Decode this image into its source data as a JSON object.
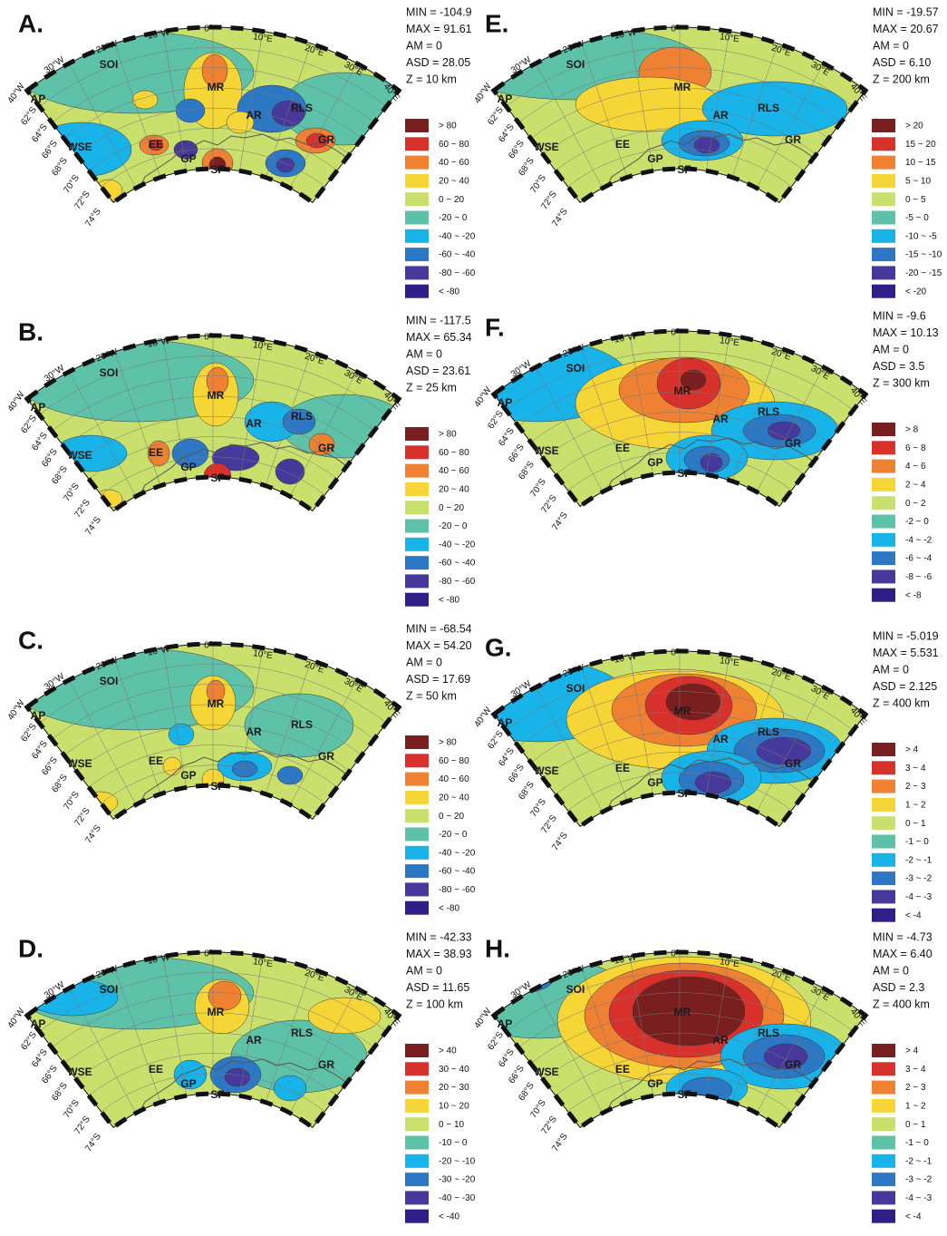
{
  "legend_colors": [
    "#7a1f1f",
    "#d8312b",
    "#ee8132",
    "#f6d536",
    "#c9e06c",
    "#5ec2a9",
    "#17b3e9",
    "#2c78c4",
    "#47399c",
    "#2e1e86"
  ],
  "regions": [
    "SOI",
    "AP",
    "WSE",
    "EE",
    "GP",
    "SF",
    "MR",
    "AR",
    "RLS",
    "GR"
  ],
  "longitudes": [
    "40°W",
    "30°W",
    "20°W",
    "10°W",
    "0°",
    "10°E",
    "20°E",
    "30°E",
    "40°E"
  ],
  "latitudes": [
    "62°S",
    "64°S",
    "66°S",
    "68°S",
    "70°S",
    "72°S",
    "74°S"
  ],
  "panels": [
    {
      "letter": "A.",
      "stats": [
        "MIN = -104.9",
        "MAX = 91.61",
        "AM = 0",
        "ASD = 28.05",
        "Z = 10 km"
      ],
      "legend": [
        "> 80",
        "60 ~ 80",
        "40 ~ 60",
        "20 ~ 40",
        "0 ~ 20",
        "-20 ~ 0",
        "-40 ~ -20",
        "-60 ~ -40",
        "-80 ~ -60",
        "< -80"
      ]
    },
    {
      "letter": "B.",
      "stats": [
        "MIN = -117.5",
        "MAX = 65.34",
        "AM = 0",
        "ASD = 23.61",
        "Z = 25 km"
      ],
      "legend": [
        "> 80",
        "60 ~ 80",
        "40 ~ 60",
        "20 ~ 40",
        "0 ~ 20",
        "-20 ~ 0",
        "-40 ~ -20",
        "-60 ~ -40",
        "-80 ~ -60",
        "< -80"
      ]
    },
    {
      "letter": "C.",
      "stats": [
        "MIN = -68.54",
        "MAX = 54.20",
        "AM = 0",
        "ASD = 17.69",
        "Z = 50 km"
      ],
      "legend": [
        "> 80",
        "60 ~ 80",
        "40 ~ 60",
        "20 ~ 40",
        "0 ~ 20",
        "-20 ~ 0",
        "-40 ~ -20",
        "-60 ~ -40",
        "-80 ~ -60",
        "< -80"
      ]
    },
    {
      "letter": "D.",
      "stats": [
        "MIN = -42.33",
        "MAX = 38.93",
        "AM = 0",
        "ASD = 11.65",
        "Z = 100 km"
      ],
      "legend": [
        "> 40",
        "30 ~ 40",
        "20 ~ 30",
        "10 ~ 20",
        "0 ~ 10",
        "-10 ~ 0",
        "-20 ~ -10",
        "-30 ~ -20",
        "-40 ~ -30",
        "< -40"
      ]
    },
    {
      "letter": "E.",
      "stats": [
        "MIN = -19.57",
        "MAX = 20.67",
        "AM = 0",
        "ASD = 6.10",
        "Z = 200 km"
      ],
      "legend": [
        "> 20",
        "15 ~ 20",
        "10 ~ 15",
        "5 ~ 10",
        "0 ~ 5",
        "-5 ~ 0",
        "-10 ~ -5",
        "-15 ~ -10",
        "-20 ~ -15",
        "< -20"
      ]
    },
    {
      "letter": "F.",
      "stats": [
        "MIN = -9.6",
        "MAX = 10.13",
        "AM = 0",
        "ASD = 3.5",
        "Z = 300 km"
      ],
      "legend": [
        "> 8",
        "6 ~ 8",
        "4 ~ 6",
        "2 ~ 4",
        "0 ~ 2",
        "-2 ~ 0",
        "-4 ~ -2",
        "-6 ~ -4",
        "-8 ~ -6",
        "< -8"
      ]
    },
    {
      "letter": "G.",
      "stats": [
        "MIN = -5.019",
        "MAX = 5.531",
        "AM = 0",
        "ASD = 2.125",
        "Z = 400 km"
      ],
      "legend": [
        "> 4",
        "3 ~ 4",
        "2 ~ 3",
        "1 ~ 2",
        "0 ~ 1",
        "-1 ~ 0",
        "-2 ~ -1",
        "-3 ~ -2",
        "-4 ~ -3",
        "< -4"
      ]
    },
    {
      "letter": "H.",
      "stats": [
        "MIN = -4.73",
        "MAX = 6.40",
        "AM = 0",
        "ASD = 2.3",
        "Z = 400 km"
      ],
      "legend": [
        "> 4",
        "3 ~ 4",
        "2 ~ 3",
        "1 ~ 2",
        "0 ~ 1",
        "-1 ~ 0",
        "-2 ~ -1",
        "-3 ~ -2",
        "-4 ~ -3",
        "< -4"
      ]
    }
  ]
}
